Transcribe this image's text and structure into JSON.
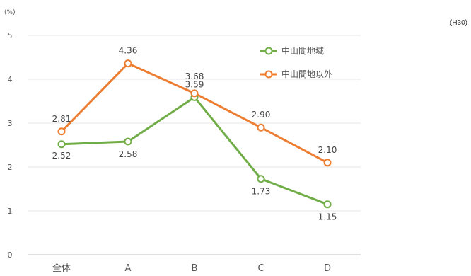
{
  "note": "(H30)",
  "chart_data": {
    "type": "line",
    "unit_label": "(%)",
    "categories": [
      "全体",
      "A",
      "B",
      "C",
      "D"
    ],
    "ylim": [
      0,
      5
    ],
    "yticks": [
      0,
      1,
      2,
      3,
      4,
      5
    ],
    "grid": true,
    "legend_position": "top-right",
    "series": [
      {
        "name": "中山間地域",
        "color": "#70ad47",
        "values": [
          2.52,
          2.58,
          3.59,
          1.73,
          1.15
        ],
        "labels": [
          "2.52",
          "2.58",
          "3.59",
          "1.73",
          "1.15"
        ]
      },
      {
        "name": "中山間地以外",
        "color": "#ed7d31",
        "values": [
          2.81,
          4.36,
          3.68,
          2.9,
          2.1
        ],
        "labels": [
          "2.81",
          "4.36",
          "3.68",
          "2.90",
          "2.10"
        ]
      }
    ]
  }
}
